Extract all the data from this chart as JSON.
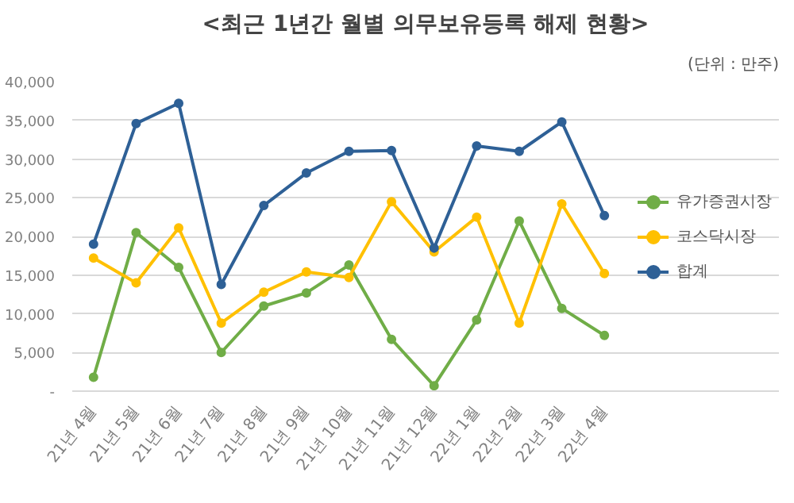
{
  "chart_data": {
    "type": "line",
    "title": "<최근 1년간 월별 의무보유등록 해제 현황>",
    "annotations": [
      "(단위 : 만주)"
    ],
    "categories": [
      "21년 4월",
      "21년 5월",
      "21년 6월",
      "21년 7월",
      "21년 8월",
      "21년 9월",
      "21년 10월",
      "21년 11월",
      "21년 12월",
      "22년 1월",
      "22년 2월",
      "22년 3월",
      "22년 4월"
    ],
    "series": [
      {
        "name": "유가증권시장",
        "color": "#70ad47",
        "values": [
          1800,
          20500,
          16000,
          5000,
          11000,
          12700,
          16300,
          6700,
          700,
          9200,
          22000,
          10700,
          7200
        ]
      },
      {
        "name": "코스닥시장",
        "color": "#ffc000",
        "values": [
          17200,
          14000,
          21100,
          8800,
          12800,
          15400,
          14700,
          24500,
          18000,
          22500,
          8800,
          24200,
          15200
        ]
      },
      {
        "name": "합계",
        "color": "#2e6096",
        "values": [
          19000,
          34600,
          37200,
          13800,
          24000,
          28200,
          31000,
          31100,
          18500,
          31700,
          31000,
          34800,
          22700
        ]
      }
    ],
    "ylim": [
      0,
      40000
    ],
    "yticks": [
      {
        "value": 0,
        "label": "-"
      },
      {
        "value": 5000,
        "label": "5,000"
      },
      {
        "value": 10000,
        "label": "10,000"
      },
      {
        "value": 15000,
        "label": "15,000"
      },
      {
        "value": 20000,
        "label": "20,000"
      },
      {
        "value": 25000,
        "label": "25,000"
      },
      {
        "value": 30000,
        "label": "30,000"
      },
      {
        "value": 35000,
        "label": "35,000"
      },
      {
        "value": 40000,
        "label": "40,000"
      }
    ],
    "grid": "y",
    "legend": "right",
    "marker": "circle",
    "line_style": "solid"
  }
}
